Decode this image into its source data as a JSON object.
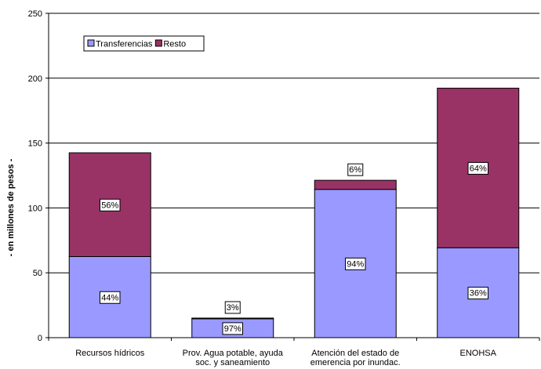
{
  "chart_data": {
    "type": "bar",
    "stacked": true,
    "categories": [
      [
        "Recursos hídricos"
      ],
      [
        "Prov. Agua potable, ayuda",
        "soc. y saneamiento"
      ],
      [
        "Atención del estado de",
        "emerencia por inundac."
      ],
      [
        "ENOHSA"
      ]
    ],
    "series": [
      {
        "name": "Transferencias",
        "values": [
          62.5,
          14.6,
          114.3,
          69.3
        ],
        "labels": [
          "44%",
          "97%",
          "94%",
          "36%"
        ],
        "color": "#9999FF"
      },
      {
        "name": "Resto",
        "values": [
          80.0,
          0.5,
          7.0,
          123.0
        ],
        "labels": [
          "56%",
          "3%",
          "6%",
          "64%"
        ],
        "color": "#993366"
      }
    ],
    "ylabel": "- en millones de pesos -",
    "ylim": [
      0,
      250
    ],
    "yticks": [
      0,
      50,
      100,
      150,
      200,
      250
    ],
    "grid": true,
    "legend": "top-left"
  }
}
